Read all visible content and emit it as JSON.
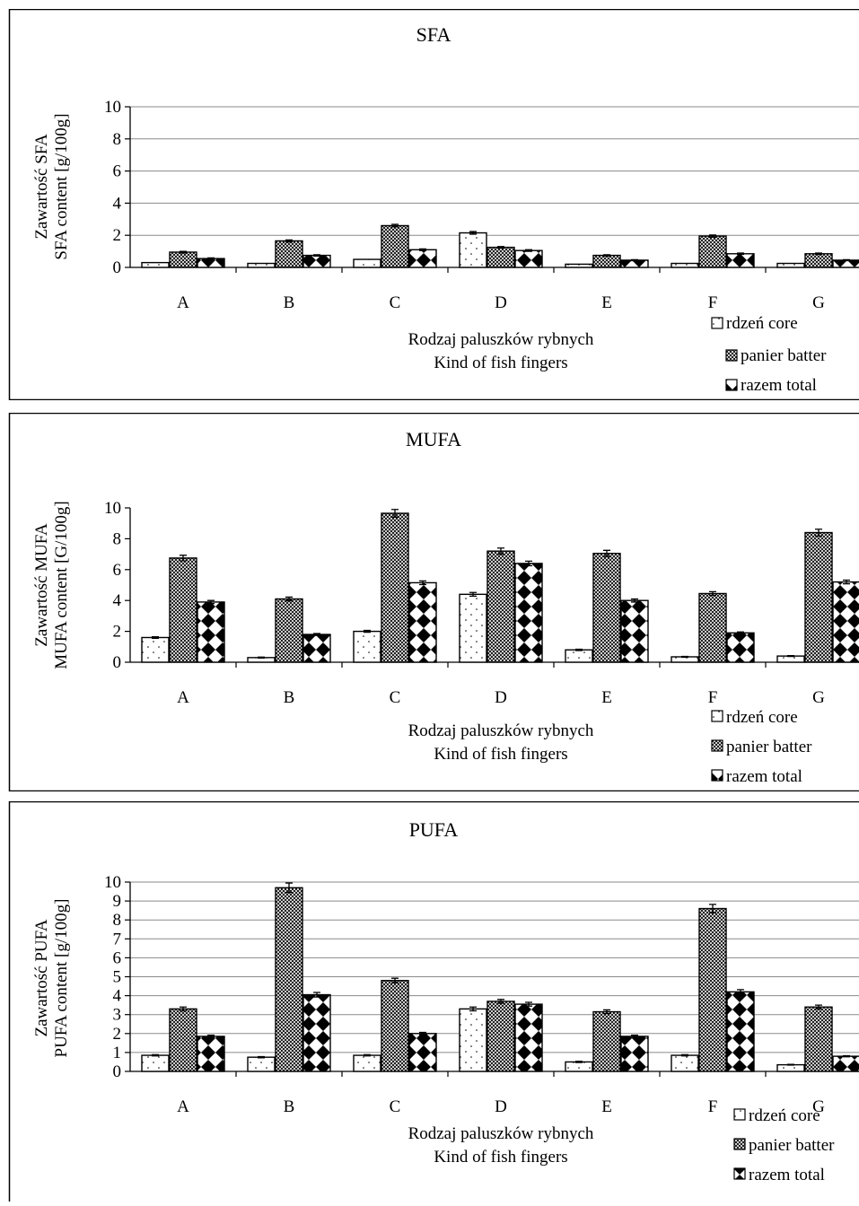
{
  "colors": {
    "frame": "#000000",
    "grid": "#8a8a8a",
    "background": "#ffffff"
  },
  "chart_data": [
    {
      "type": "bar",
      "title": "SFA",
      "ylabel_line1": "Zawartość SFA",
      "ylabel_line2": "SFA content [g/100g]",
      "xlabel_line1": "Rodzaj paluszków rybnych",
      "xlabel_line2": "Kind of fish fingers",
      "categories": [
        "A",
        "B",
        "C",
        "D",
        "E",
        "F",
        "G"
      ],
      "ylim": [
        0,
        10
      ],
      "yticks": [
        0,
        2,
        4,
        6,
        8,
        10
      ],
      "grid": true,
      "legend_position": "bottom-right",
      "series": [
        {
          "name": "rdzeń core",
          "pattern": "dots",
          "values": [
            0.3,
            0.25,
            0.5,
            2.15,
            0.2,
            0.25,
            0.25
          ],
          "errors": [
            0,
            0,
            0,
            0.08,
            0,
            0,
            0
          ]
        },
        {
          "name": "panier batter",
          "pattern": "crosshatch",
          "values": [
            0.95,
            1.65,
            2.6,
            1.25,
            0.75,
            1.95,
            0.85
          ],
          "errors": [
            0.05,
            0.06,
            0.08,
            0.05,
            0.04,
            0.07,
            0.04
          ]
        },
        {
          "name": "razem total",
          "pattern": "diamonds",
          "values": [
            0.55,
            0.75,
            1.1,
            1.05,
            0.45,
            0.85,
            0.45
          ],
          "errors": [
            0.04,
            0.04,
            0.05,
            0.05,
            0.03,
            0.04,
            0.03
          ]
        }
      ]
    },
    {
      "type": "bar",
      "title": "MUFA",
      "ylabel_line1": "Zawartość MUFA",
      "ylabel_line2": "MUFA content [G/100g]",
      "xlabel_line1": "Rodzaj paluszków rybnych",
      "xlabel_line2": "Kind of fish fingers",
      "categories": [
        "A",
        "B",
        "C",
        "D",
        "E",
        "F",
        "G"
      ],
      "ylim": [
        0,
        10
      ],
      "yticks": [
        0,
        2,
        4,
        6,
        8,
        10
      ],
      "grid": false,
      "legend_position": "bottom-right",
      "series": [
        {
          "name": "rdzeń core",
          "pattern": "dots",
          "values": [
            1.6,
            0.3,
            2.0,
            4.4,
            0.8,
            0.35,
            0.4
          ],
          "errors": [
            0.05,
            0.03,
            0.06,
            0.12,
            0.04,
            0.03,
            0.03
          ]
        },
        {
          "name": "panier batter",
          "pattern": "crosshatch",
          "values": [
            6.75,
            4.1,
            9.65,
            7.2,
            7.05,
            4.45,
            8.4
          ],
          "errors": [
            0.18,
            0.12,
            0.25,
            0.2,
            0.2,
            0.12,
            0.22
          ]
        },
        {
          "name": "razem total",
          "pattern": "diamonds",
          "values": [
            3.9,
            1.8,
            5.15,
            6.4,
            4.0,
            1.9,
            5.2
          ],
          "errors": [
            0.1,
            0.06,
            0.12,
            0.15,
            0.1,
            0.06,
            0.12
          ]
        }
      ]
    },
    {
      "type": "bar",
      "title": "PUFA",
      "ylabel_line1": "Zawartość PUFA",
      "ylabel_line2": "PUFA content [g/100g]",
      "xlabel_line1": "Rodzaj paluszków rybnych",
      "xlabel_line2": "Kind of fish fingers",
      "categories": [
        "A",
        "B",
        "C",
        "D",
        "E",
        "F",
        "G"
      ],
      "ylim": [
        0,
        10
      ],
      "yticks": [
        0,
        1,
        2,
        3,
        4,
        5,
        6,
        7,
        8,
        9,
        10
      ],
      "grid": true,
      "legend_position": "bottom-right",
      "series": [
        {
          "name": "rdzeń core",
          "pattern": "dots",
          "values": [
            0.85,
            0.75,
            0.85,
            3.3,
            0.5,
            0.85,
            0.35
          ],
          "errors": [
            0.03,
            0.03,
            0.03,
            0.1,
            0.03,
            0.03,
            0.02
          ]
        },
        {
          "name": "panier batter",
          "pattern": "crosshatch",
          "values": [
            3.3,
            9.7,
            4.8,
            3.7,
            3.15,
            8.6,
            3.4
          ],
          "errors": [
            0.1,
            0.25,
            0.12,
            0.1,
            0.1,
            0.22,
            0.1
          ]
        },
        {
          "name": "razem total",
          "pattern": "diamonds",
          "values": [
            1.85,
            4.05,
            2.0,
            3.55,
            1.85,
            4.2,
            0.8
          ],
          "errors": [
            0.06,
            0.12,
            0.06,
            0.1,
            0.06,
            0.12,
            0.03
          ]
        }
      ]
    }
  ]
}
